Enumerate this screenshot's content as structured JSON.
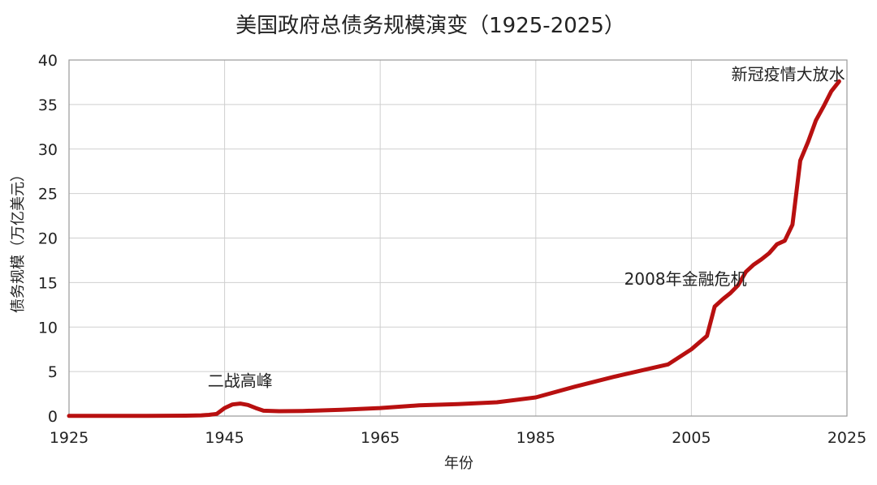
{
  "chart_data": {
    "type": "line",
    "title": "美国政府总债务规模演变（1925-2025）",
    "xlabel": "年份",
    "ylabel": "债务规模（万亿美元）",
    "xlim": [
      1925,
      2025
    ],
    "ylim": [
      0,
      40
    ],
    "x_ticks": [
      1925,
      1945,
      1965,
      1985,
      2005,
      2025
    ],
    "y_ticks": [
      0,
      5,
      10,
      15,
      20,
      25,
      30,
      35,
      40
    ],
    "grid": true,
    "line_color": "#b81010",
    "series": [
      {
        "points": [
          [
            1925,
            0.02
          ],
          [
            1930,
            0.02
          ],
          [
            1935,
            0.03
          ],
          [
            1940,
            0.05
          ],
          [
            1942,
            0.08
          ],
          [
            1943,
            0.14
          ],
          [
            1944,
            0.25
          ],
          [
            1945,
            0.9
          ],
          [
            1946,
            1.3
          ],
          [
            1947,
            1.4
          ],
          [
            1948,
            1.25
          ],
          [
            1949,
            0.9
          ],
          [
            1950,
            0.6
          ],
          [
            1952,
            0.55
          ],
          [
            1955,
            0.57
          ],
          [
            1960,
            0.7
          ],
          [
            1965,
            0.9
          ],
          [
            1970,
            1.2
          ],
          [
            1975,
            1.35
          ],
          [
            1980,
            1.55
          ],
          [
            1985,
            2.1
          ],
          [
            1990,
            3.3
          ],
          [
            1995,
            4.4
          ],
          [
            2000,
            5.4
          ],
          [
            2002,
            5.8
          ],
          [
            2005,
            7.5
          ],
          [
            2007,
            9.0
          ],
          [
            2008,
            12.3
          ],
          [
            2009,
            13.1
          ],
          [
            2010,
            13.8
          ],
          [
            2011,
            14.7
          ],
          [
            2012,
            16.2
          ],
          [
            2013,
            17.0
          ],
          [
            2014,
            17.6
          ],
          [
            2015,
            18.3
          ],
          [
            2016,
            19.3
          ],
          [
            2017,
            19.7
          ],
          [
            2018,
            21.5
          ],
          [
            2019,
            28.7
          ],
          [
            2020,
            30.8
          ],
          [
            2021,
            33.2
          ],
          [
            2022,
            34.8
          ],
          [
            2023,
            36.5
          ],
          [
            2024,
            37.6
          ]
        ]
      }
    ],
    "annotations": [
      {
        "text": "二战高峰",
        "x": 1947,
        "y": 1.3
      },
      {
        "text": "2008年金融危机",
        "x": 2008,
        "y": 12.3
      },
      {
        "text": "新冠疫情大放水",
        "x": 2021,
        "y": 33.2
      }
    ]
  }
}
